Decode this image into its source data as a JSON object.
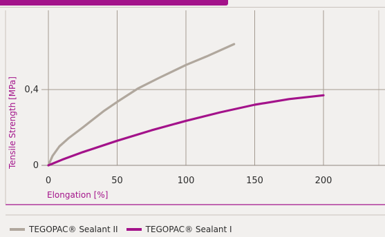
{
  "chart_data": {
    "type": "line",
    "title": "",
    "xlabel": "Elongation [%]",
    "ylabel": "Tensile Strength [MPa]",
    "xlim": [
      0,
      200
    ],
    "ylim": [
      0,
      0.8
    ],
    "x_ticks": [
      "0",
      "50",
      "100",
      "150",
      "200"
    ],
    "y_ticks": [
      {
        "value": 0,
        "label": "0"
      },
      {
        "value": 0.4,
        "label": "0,4"
      }
    ],
    "grid": true,
    "legend": "bottom",
    "series": [
      {
        "name": "TEGOPAC® Sealant II",
        "color": "#b0a79d",
        "points": [
          [
            0,
            0
          ],
          [
            3,
            0.05
          ],
          [
            8,
            0.1
          ],
          [
            15,
            0.145
          ],
          [
            25,
            0.2
          ],
          [
            40,
            0.285
          ],
          [
            50,
            0.335
          ],
          [
            65,
            0.405
          ],
          [
            80,
            0.46
          ],
          [
            100,
            0.53
          ],
          [
            115,
            0.575
          ],
          [
            135,
            0.64
          ]
        ]
      },
      {
        "name": "TEGOPAC® Sealant I",
        "color": "#a3128a",
        "points": [
          [
            0,
            0
          ],
          [
            10,
            0.03
          ],
          [
            25,
            0.07
          ],
          [
            50,
            0.13
          ],
          [
            75,
            0.185
          ],
          [
            100,
            0.235
          ],
          [
            125,
            0.28
          ],
          [
            150,
            0.32
          ],
          [
            175,
            0.35
          ],
          [
            200,
            0.37
          ]
        ]
      }
    ]
  },
  "legend": {
    "items": [
      {
        "label": "TEGOPAC® Sealant II",
        "color": "#b0a79d"
      },
      {
        "label": "TEGOPAC® Sealant I",
        "color": "#a3128a"
      }
    ]
  }
}
